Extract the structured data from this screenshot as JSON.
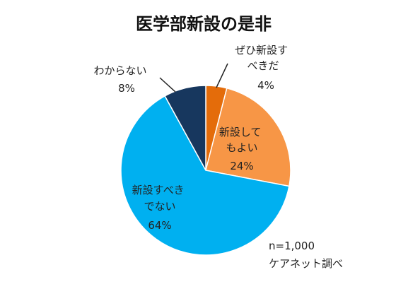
{
  "chart_data": {
    "type": "pie",
    "title": "医学部新設の是非",
    "slices": [
      {
        "label_lines": [
          "ぜひ新設す",
          "べきだ"
        ],
        "value": 4,
        "value_label": "4%",
        "color": "#E46C0A"
      },
      {
        "label_lines": [
          "新設して",
          "もよい"
        ],
        "value": 24,
        "value_label": "24%",
        "color": "#F79646"
      },
      {
        "label_lines": [
          "新設すべき",
          "でない"
        ],
        "value": 64,
        "value_label": "64%",
        "color": "#00B0F0"
      },
      {
        "label_lines": [
          "わからない"
        ],
        "value": 8,
        "value_label": "8%",
        "color": "#17375E"
      }
    ],
    "notes": [
      "n=1,000",
      "ケアネット調べ"
    ]
  }
}
